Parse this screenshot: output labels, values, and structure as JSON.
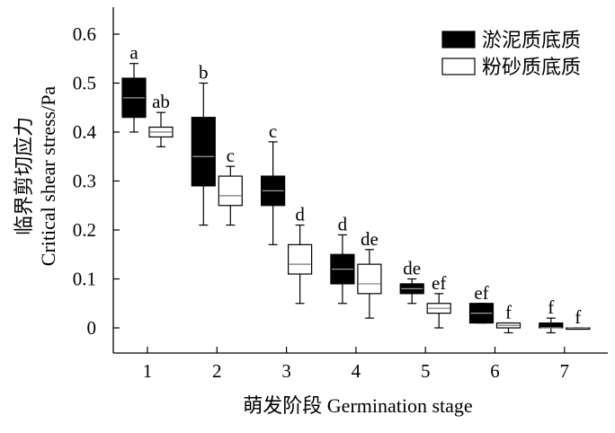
{
  "chart_data": {
    "type": "box",
    "xlabel": "萌发阶段 Germination stage",
    "ylabel_cn": "临界剪切应力",
    "ylabel_en": "Critical shear stress/Pa",
    "categories": [
      "1",
      "2",
      "3",
      "4",
      "5",
      "6",
      "7"
    ],
    "ylim": [
      -0.05,
      0.65
    ],
    "yticks": [
      "0",
      "0.1",
      "0.2",
      "0.3",
      "0.4",
      "0.5",
      "0.6"
    ],
    "legend_position": "top-right",
    "series": [
      {
        "name": "淤泥质底质",
        "fill": "#000000",
        "median_color": "#9a9a9a",
        "boxes": [
          {
            "whisker_low": 0.4,
            "q1": 0.43,
            "median": 0.47,
            "q3": 0.51,
            "whisker_high": 0.54,
            "label": "a"
          },
          {
            "whisker_low": 0.21,
            "q1": 0.29,
            "median": 0.35,
            "q3": 0.43,
            "whisker_high": 0.5,
            "label": "b"
          },
          {
            "whisker_low": 0.17,
            "q1": 0.25,
            "median": 0.28,
            "q3": 0.31,
            "whisker_high": 0.38,
            "label": "c"
          },
          {
            "whisker_low": 0.05,
            "q1": 0.09,
            "median": 0.12,
            "q3": 0.15,
            "whisker_high": 0.19,
            "label": "d"
          },
          {
            "whisker_low": 0.05,
            "q1": 0.07,
            "median": 0.08,
            "q3": 0.09,
            "whisker_high": 0.1,
            "label": "de"
          },
          {
            "whisker_low": 0.01,
            "q1": 0.01,
            "median": 0.03,
            "q3": 0.05,
            "whisker_high": 0.05,
            "label": "ef"
          },
          {
            "whisker_low": -0.01,
            "q1": 0.0,
            "median": 0.0,
            "q3": 0.01,
            "whisker_high": 0.02,
            "label": "f"
          }
        ]
      },
      {
        "name": "粉砂质底质",
        "fill": "#ffffff",
        "median_color": "#777777",
        "boxes": [
          {
            "whisker_low": 0.37,
            "q1": 0.39,
            "median": 0.4,
            "q3": 0.41,
            "whisker_high": 0.44,
            "label": "ab"
          },
          {
            "whisker_low": 0.21,
            "q1": 0.25,
            "median": 0.27,
            "q3": 0.31,
            "whisker_high": 0.33,
            "label": "c"
          },
          {
            "whisker_low": 0.05,
            "q1": 0.11,
            "median": 0.13,
            "q3": 0.17,
            "whisker_high": 0.21,
            "label": "d"
          },
          {
            "whisker_low": 0.02,
            "q1": 0.07,
            "median": 0.09,
            "q3": 0.13,
            "whisker_high": 0.16,
            "label": "de"
          },
          {
            "whisker_low": 0.0,
            "q1": 0.03,
            "median": 0.04,
            "q3": 0.05,
            "whisker_high": 0.07,
            "label": "ef"
          },
          {
            "whisker_low": -0.01,
            "q1": 0.0,
            "median": 0.005,
            "q3": 0.01,
            "whisker_high": 0.01,
            "label": "f"
          },
          {
            "whisker_low": 0.0,
            "q1": 0.0,
            "median": 0.0,
            "q3": 0.0,
            "whisker_high": 0.0,
            "label": "f"
          }
        ]
      }
    ]
  }
}
